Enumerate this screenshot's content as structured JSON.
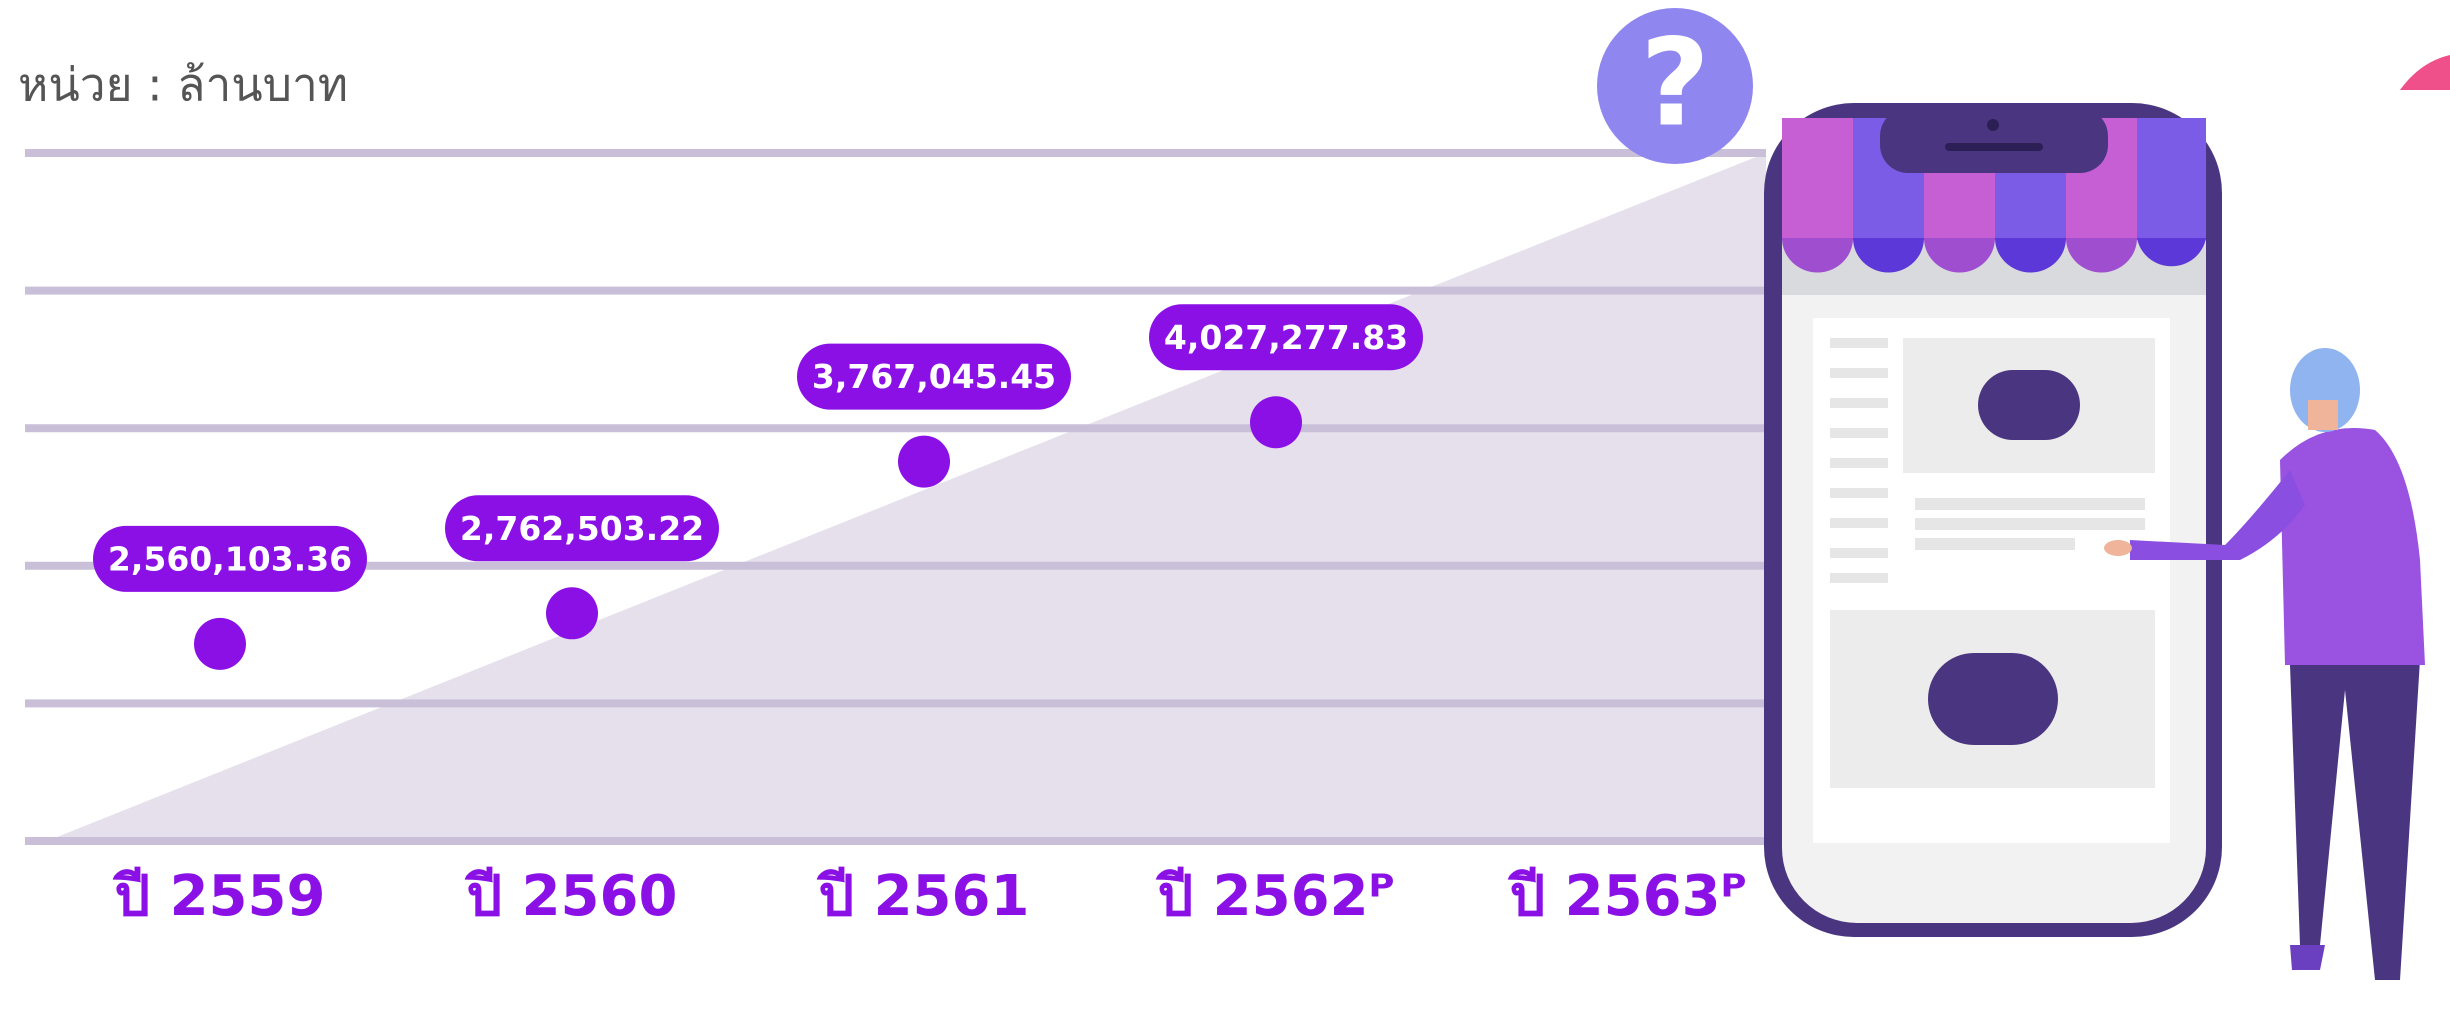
{
  "chart_data": {
    "type": "scatter",
    "unit_label": "หน่วย : ล้านบาท",
    "badge": "?",
    "categories": [
      "ปี 2559",
      "ปี 2560",
      "ปี 2561",
      "ปี 2562ᴾ",
      "ปี 2563ᴾ"
    ],
    "values": [
      2560103.36,
      2762503.22,
      3767045.45,
      4027277.83,
      null
    ],
    "value_labels": [
      "2,560,103.36",
      "2,762,503.22",
      "3,767,045.45",
      "4,027,277.83",
      null
    ],
    "color": "#8a10e6",
    "ylim": [
      1255000,
      5810000
    ]
  }
}
